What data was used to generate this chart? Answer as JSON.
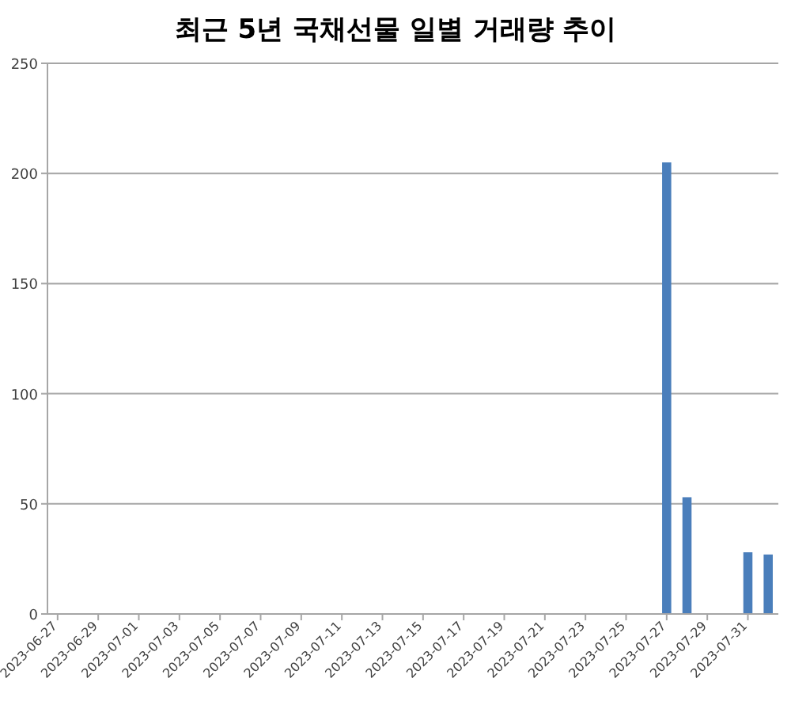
{
  "chart_data": {
    "type": "bar",
    "title": "최근 5년 국채선물 일별 거래량 추이",
    "categories": [
      "2023-06-27",
      null,
      "2023-06-29",
      null,
      "2023-07-01",
      null,
      "2023-07-03",
      null,
      "2023-07-05",
      null,
      "2023-07-07",
      null,
      "2023-07-09",
      null,
      "2023-07-11",
      null,
      "2023-07-13",
      null,
      "2023-07-15",
      null,
      "2023-07-17",
      null,
      "2023-07-19",
      null,
      "2023-07-21",
      null,
      "2023-07-23",
      null,
      "2023-07-25",
      null,
      "2023-07-27",
      null,
      "2023-07-29",
      null,
      "2023-07-31",
      null
    ],
    "values": [
      null,
      null,
      null,
      null,
      null,
      null,
      null,
      null,
      null,
      null,
      null,
      null,
      null,
      null,
      null,
      null,
      null,
      null,
      null,
      null,
      null,
      null,
      null,
      null,
      null,
      null,
      null,
      null,
      null,
      null,
      205,
      53,
      null,
      null,
      28,
      27
    ],
    "color": "#4a7ebb",
    "ylim": [
      0,
      250
    ],
    "yticks": [
      0,
      50,
      100,
      150,
      200,
      250
    ],
    "grid": "y"
  }
}
